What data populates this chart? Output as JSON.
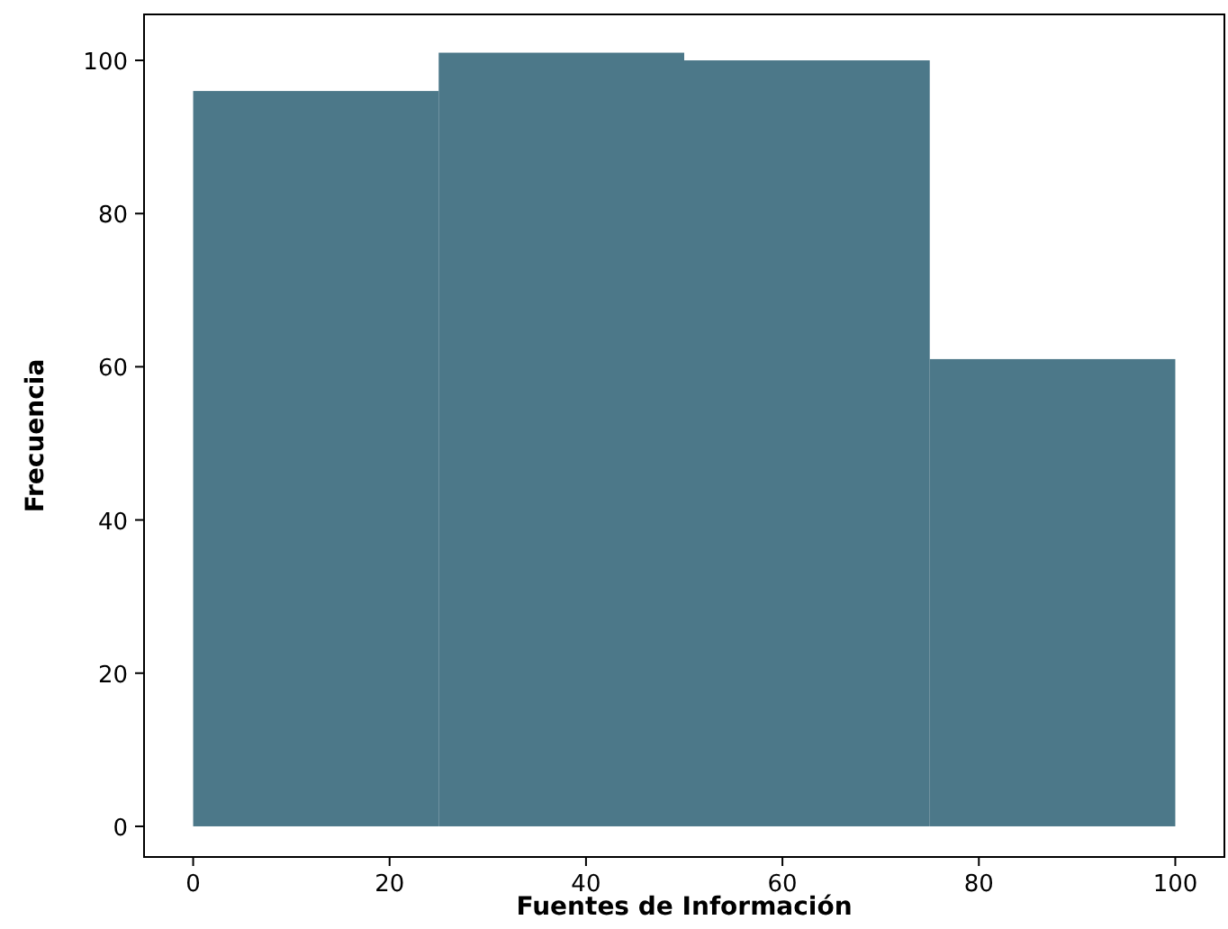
{
  "chart_data": {
    "type": "histogram",
    "xlabel": "Fuentes de Información",
    "ylabel": "Frecuencia",
    "bins": [
      0,
      25,
      50,
      75,
      100
    ],
    "values": [
      96,
      101,
      100,
      61
    ],
    "color": "#4c7889",
    "xlim": [
      -5,
      105
    ],
    "xticks": [
      0,
      20,
      40,
      60,
      80,
      100
    ],
    "ylim": [
      -4,
      106
    ],
    "yticks": [
      0,
      20,
      40,
      60,
      80,
      100
    ]
  }
}
